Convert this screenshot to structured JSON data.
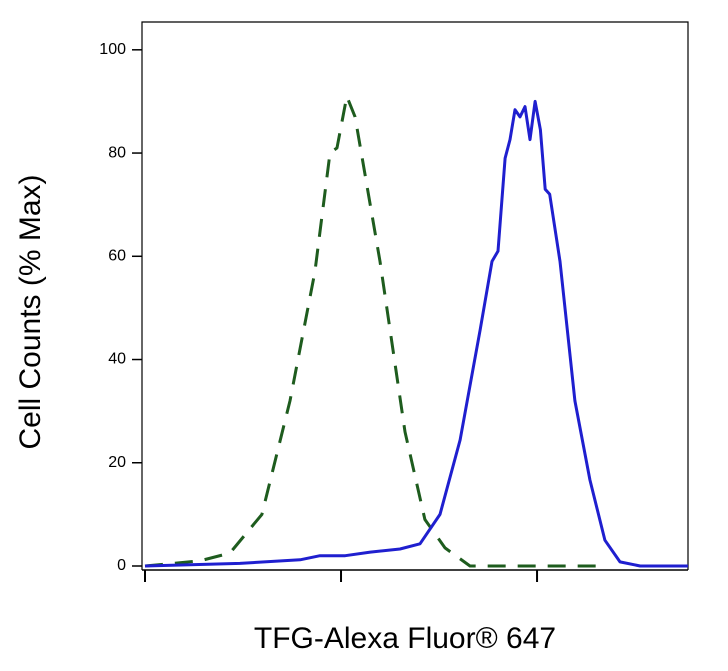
{
  "chart_data": {
    "type": "line",
    "x_label": "TFG-Alexa Fluor® 647",
    "y_label": "Cell Counts (% Max)",
    "xscale": "log",
    "xlim": [
      1,
      589
    ],
    "xticks": [
      1,
      10,
      100
    ],
    "ylim": [
      0,
      105
    ],
    "yticks": [
      0,
      20,
      40,
      60,
      80,
      100
    ],
    "series": [
      {
        "color": "#1e5c1e",
        "dash": true,
        "x": [
          1,
          1.91,
          2.71,
          3.95,
          5.49,
          7.36,
          8.79,
          9.54,
          10.7,
          11.8,
          15.8,
          21.2,
          26.8,
          33.9,
          45.5,
          64.7,
          131,
          210
        ],
        "values": [
          0,
          1,
          2.5,
          10,
          32,
          57,
          80,
          81,
          91,
          87,
          59,
          26,
          9,
          3.5,
          0,
          0,
          0,
          0
        ]
      },
      {
        "color": "#1f1fcf",
        "dash": false,
        "x": [
          1,
          3.05,
          6.18,
          7.81,
          10.5,
          14.1,
          20.0,
          25.3,
          32.0,
          40.5,
          51.2,
          58.9,
          63.2,
          68.7,
          72.8,
          77.2,
          81.9,
          86.8,
          92.1,
          97.7,
          104,
          110,
          116,
          131,
          156,
          186,
          222,
          265,
          336,
          589
        ],
        "values": [
          0,
          0.5,
          1.2,
          2,
          2,
          2.7,
          3.3,
          4.3,
          10,
          24.4,
          45.7,
          59,
          61,
          79,
          82.6,
          88.4,
          87,
          89,
          82.6,
          90,
          84.5,
          73,
          72,
          59,
          32,
          16.7,
          5,
          0.8,
          0,
          0
        ]
      }
    ]
  }
}
